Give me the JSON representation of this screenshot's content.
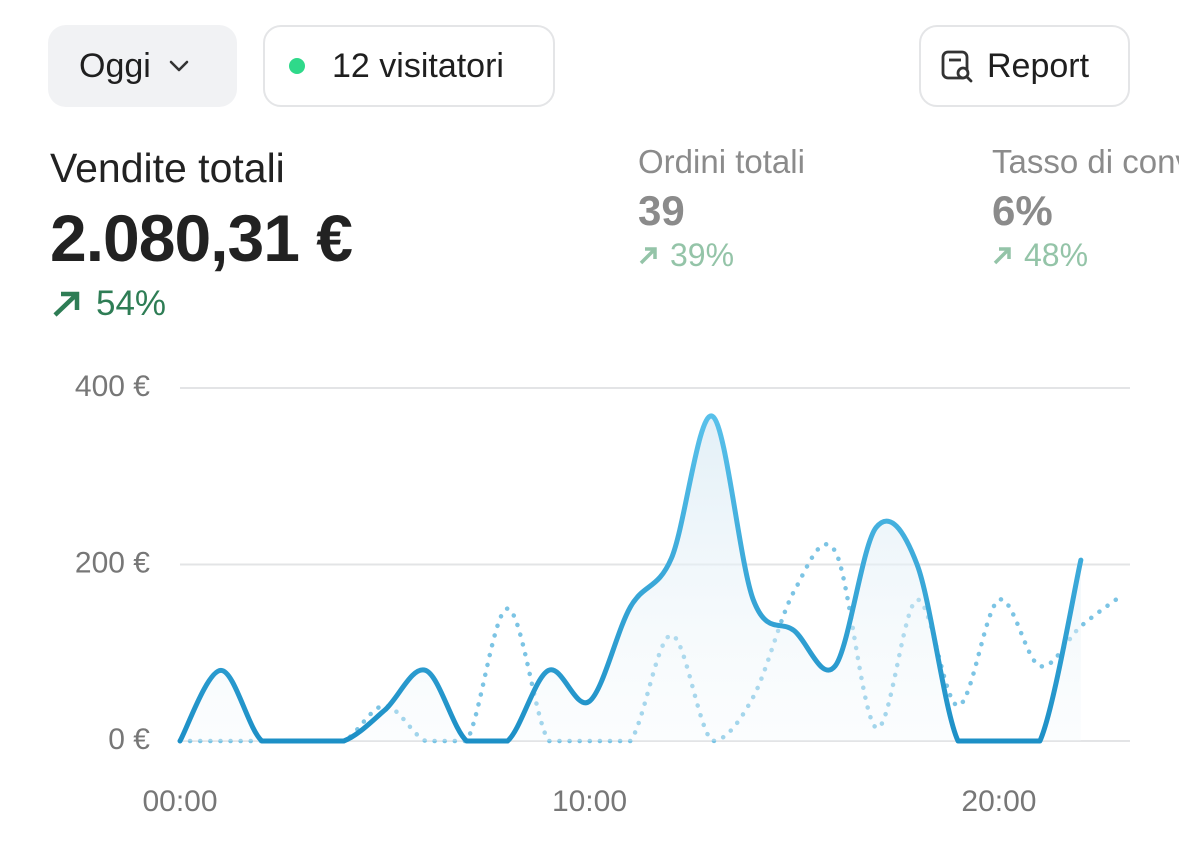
{
  "header": {
    "period_button": "Oggi",
    "visitors_button": "12 visitatori",
    "report_button": "Report"
  },
  "metrics": [
    {
      "label": "Vendite totali",
      "value": "2.080,31 €",
      "change": "54%"
    },
    {
      "label": "Ordini totali",
      "value": "39",
      "change": "39%"
    },
    {
      "label": "Tasso di conversione",
      "value": "6%",
      "change": "48%"
    }
  ],
  "chart_data": {
    "type": "line",
    "x": [
      0,
      1,
      2,
      3,
      4,
      5,
      6,
      7,
      8,
      9,
      10,
      11,
      12,
      13,
      14,
      15,
      16,
      17,
      18,
      19,
      20,
      21,
      22,
      23
    ],
    "xlim": [
      0,
      23.2
    ],
    "xticks": [
      {
        "value": 0,
        "label": "00:00"
      },
      {
        "value": 10,
        "label": "10:00"
      },
      {
        "value": 20,
        "label": "20:00"
      }
    ],
    "ylim": [
      0,
      400
    ],
    "yticks": [
      {
        "value": 0,
        "label": "0 €"
      },
      {
        "value": 200,
        "label": "200 €"
      },
      {
        "value": 400,
        "label": "400 €"
      }
    ],
    "grid": true,
    "series": [
      {
        "color": "#2aa0d8",
        "style": "solid",
        "values": [
          0,
          80,
          0,
          0,
          0,
          35,
          80,
          0,
          0,
          80,
          45,
          152,
          207,
          368,
          160,
          125,
          85,
          242,
          200,
          0,
          0,
          0,
          205,
          null
        ]
      },
      {
        "color": "#7cc4e4",
        "style": "dotted",
        "values": [
          0,
          0,
          0,
          0,
          0,
          40,
          0,
          0,
          150,
          0,
          0,
          0,
          120,
          0,
          50,
          170,
          215,
          15,
          160,
          40,
          160,
          85,
          130,
          165
        ]
      }
    ]
  }
}
